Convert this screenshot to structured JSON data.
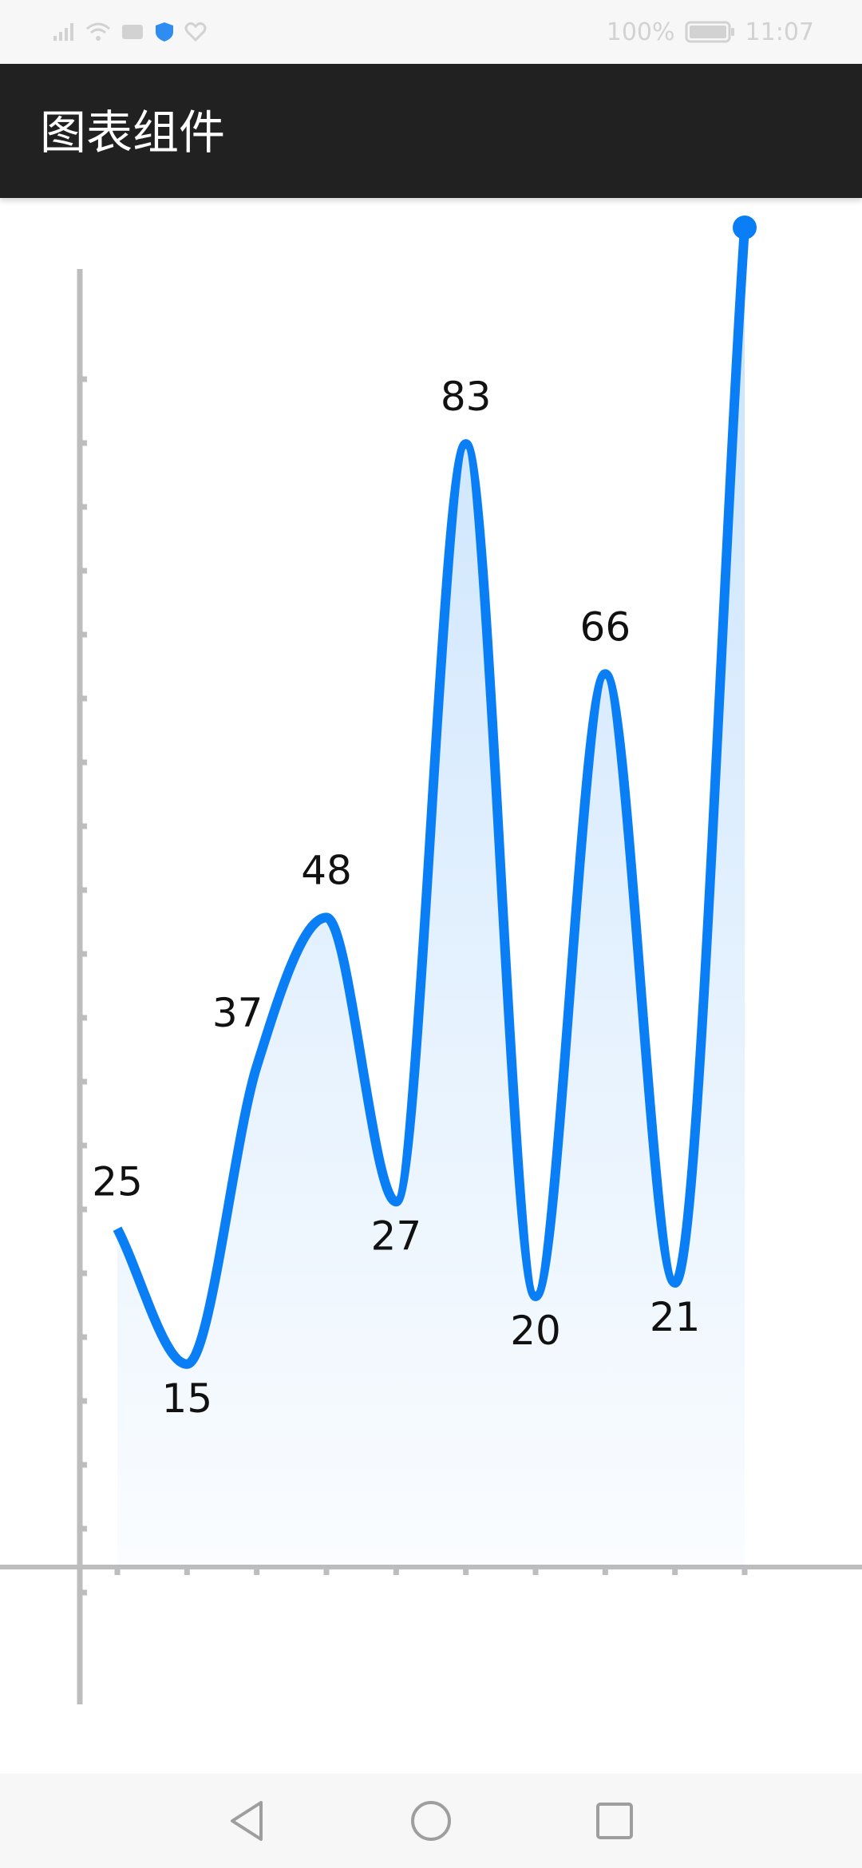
{
  "status_bar": {
    "battery_text": "100%",
    "time": "11:07",
    "icons": [
      "signal-icon",
      "wifi-icon",
      "sim-icon",
      "shield-icon",
      "heart-icon",
      "battery-icon"
    ]
  },
  "app_bar": {
    "title": "图表组件"
  },
  "chart_data": {
    "type": "line",
    "smooth": true,
    "filled": true,
    "values": [
      25,
      15,
      37,
      48,
      27,
      83,
      20,
      66,
      21,
      99
    ],
    "ylim": [
      0,
      100
    ],
    "title": "",
    "xlabel": "",
    "ylabel": "",
    "grid": false,
    "legend": "none",
    "line_color": "#0a7ff5",
    "fill_color": "#0a7ff5",
    "axis_color": "#bdbdbd",
    "label_color": "#111111"
  },
  "nav_bar": {
    "buttons": [
      "back-icon",
      "home-icon",
      "recents-icon"
    ]
  }
}
